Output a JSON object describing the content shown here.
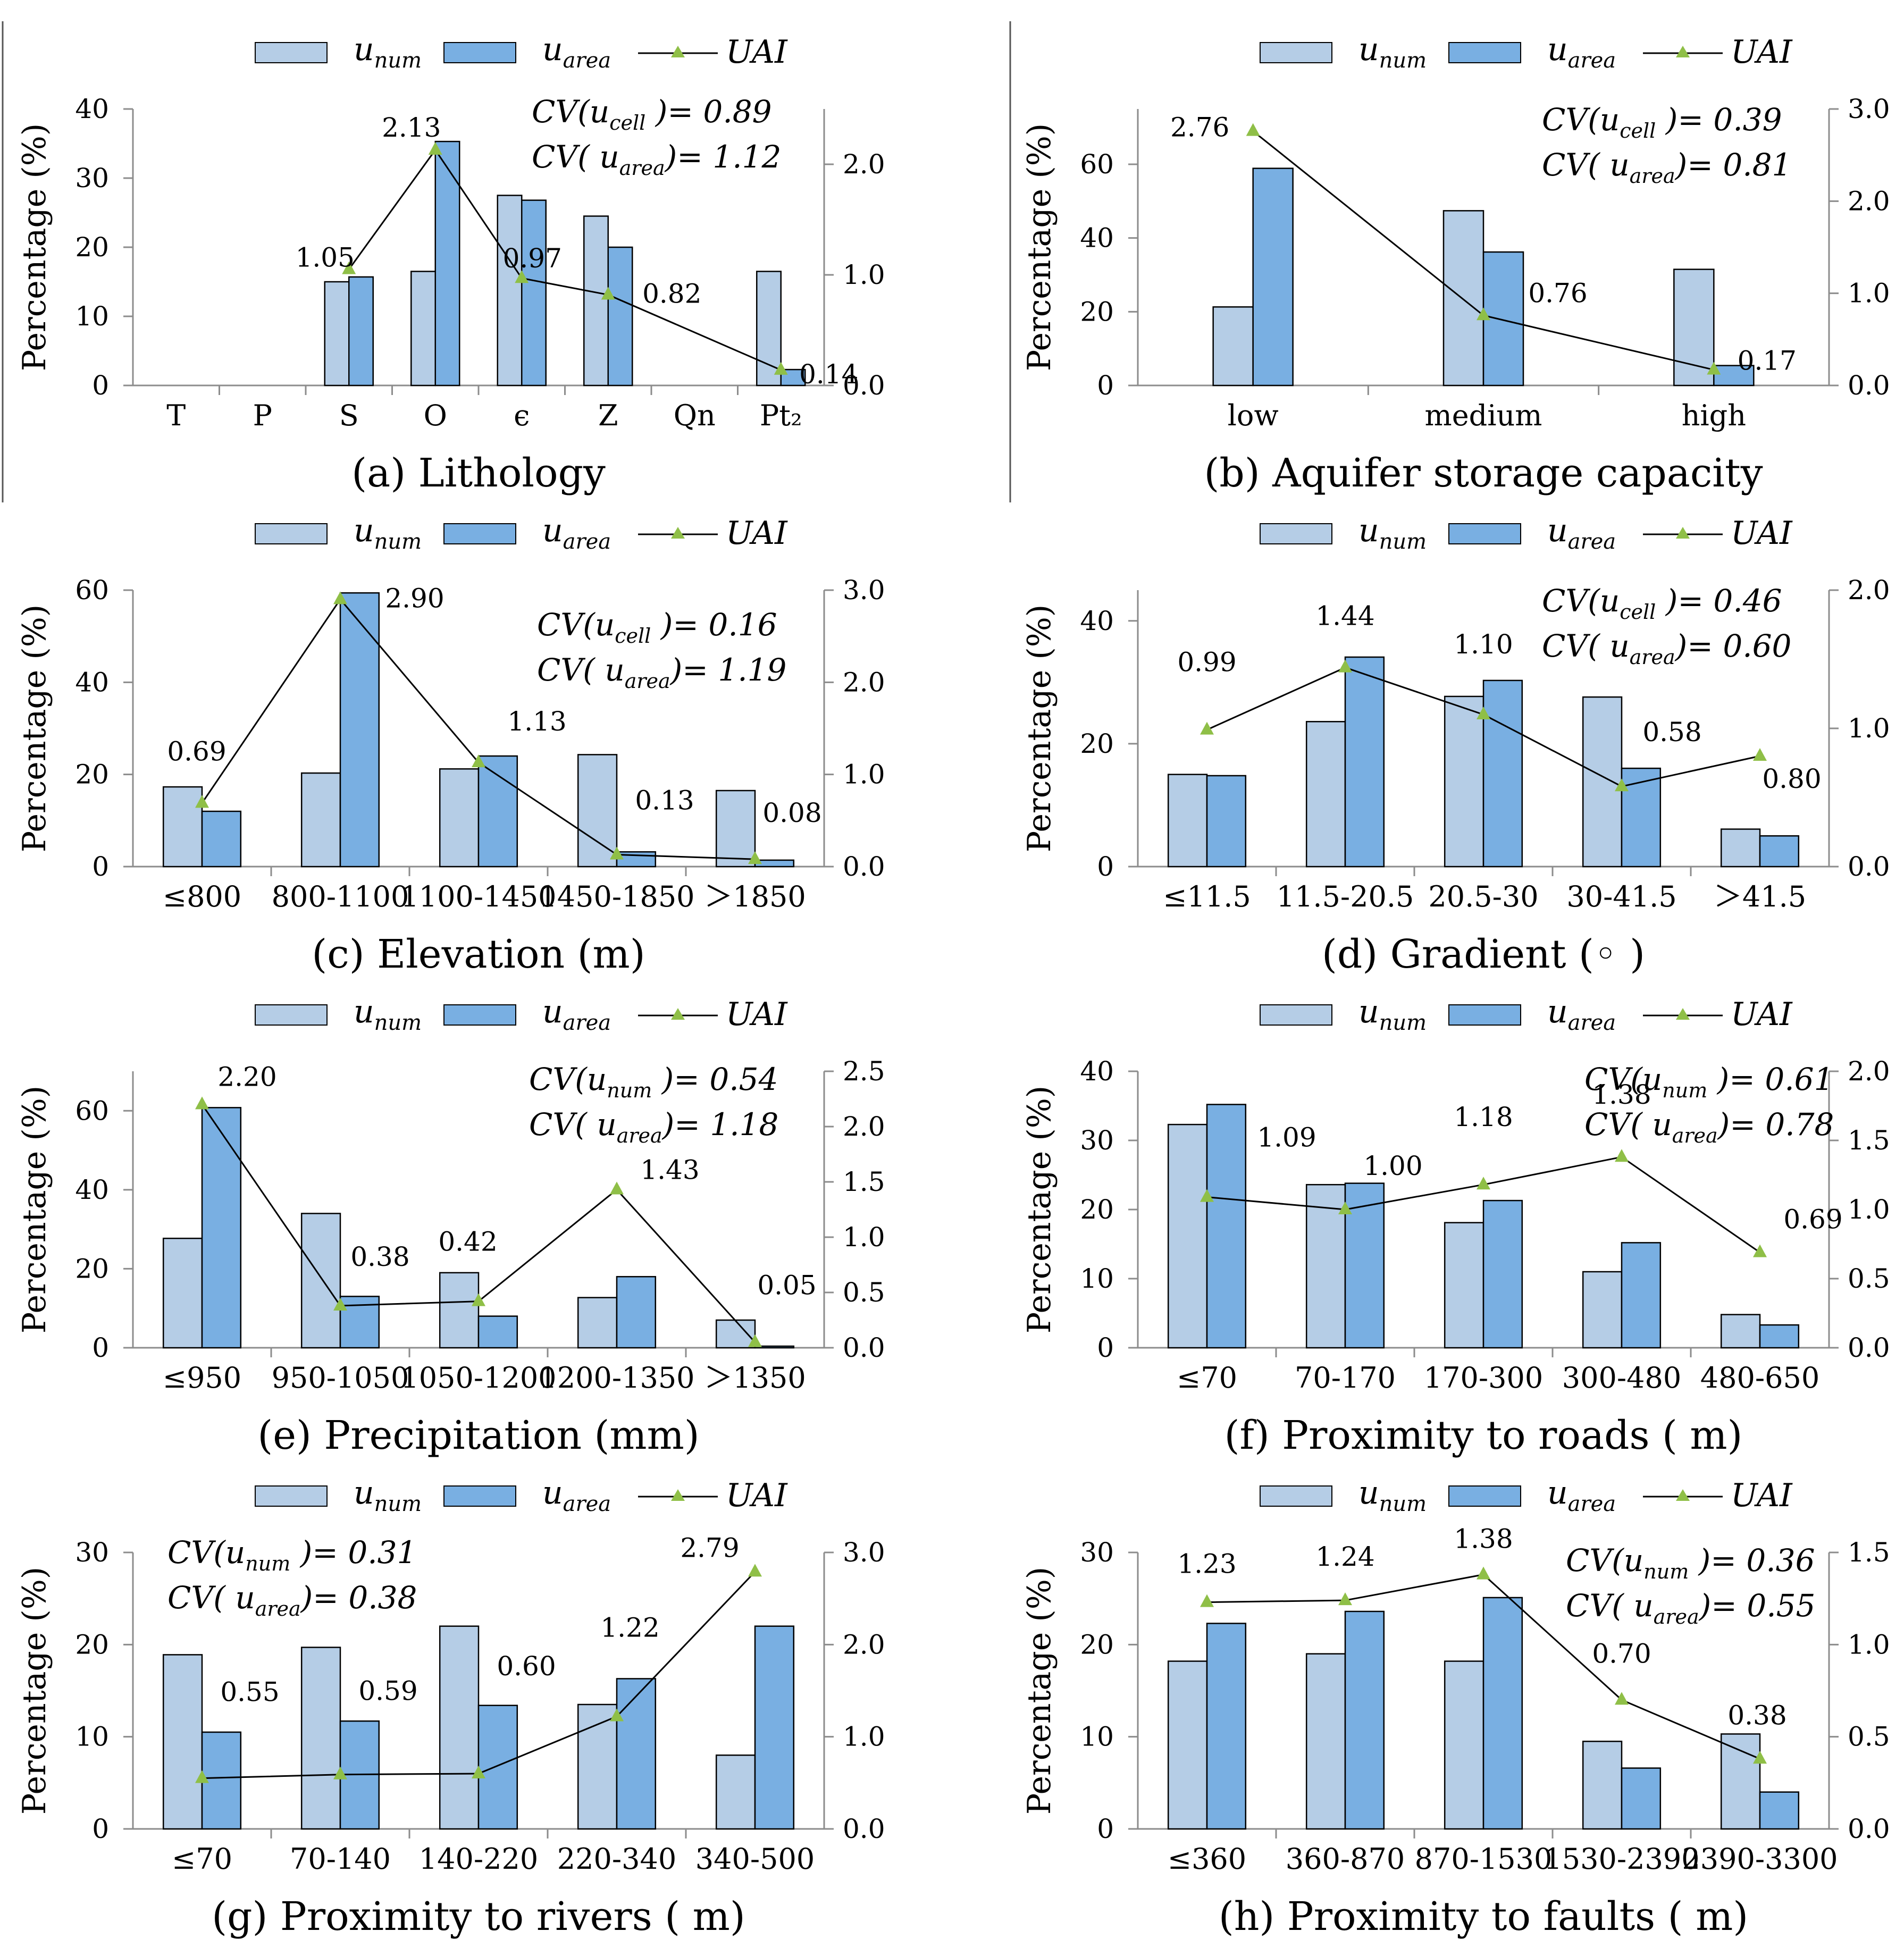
{
  "colors": {
    "u_num": "#b5cde6",
    "u_area": "#79afe2",
    "uai_line": "#000000",
    "uai_marker": "#8fbf47",
    "axis": "#8c8c8c"
  },
  "legend": {
    "u_num_label": "u",
    "u_num_sub": "num",
    "u_area_label": "u",
    "u_area_sub": "area",
    "uai_label": "UAI"
  },
  "y_axis_label": "Percentage (%)",
  "chart_data": [
    {
      "id": "a",
      "type": "bar",
      "title": "(a) Lithology",
      "categories": [
        "T",
        "P",
        "S",
        "O",
        "ϵ",
        "Z",
        "Qn",
        "Pt₂"
      ],
      "series": [
        {
          "name": "u_num",
          "values": [
            0,
            0,
            15,
            16.5,
            27.5,
            24.5,
            0,
            16.5
          ]
        },
        {
          "name": "u_area",
          "values": [
            0,
            0,
            15.7,
            35.3,
            26.8,
            20,
            0,
            2.3
          ]
        },
        {
          "name": "UAI",
          "values": [
            null,
            null,
            1.05,
            2.13,
            0.97,
            0.82,
            null,
            0.14
          ],
          "labels": [
            "",
            "",
            "1.05",
            "2.13",
            "0.97",
            "0.82",
            "",
            "0.14"
          ]
        }
      ],
      "ylim": [
        0,
        40
      ],
      "yticks": [
        "0",
        "10",
        "20",
        "30",
        "40"
      ],
      "y2lim": [
        0,
        2.5
      ],
      "y2ticks": [
        "0.0",
        "1.0",
        "2.0"
      ],
      "y2tick_values": [
        0,
        1,
        2
      ],
      "cv1": {
        "pre": "CV(u",
        "sub": "cell",
        "post": " )= 0.89"
      },
      "cv2": {
        "pre": "CV( u",
        "sub": "area",
        "post": ")= 1.12"
      }
    },
    {
      "id": "b",
      "type": "bar",
      "title": "(b) Aquifer storage capacity",
      "categories": [
        "low",
        "medium",
        "high"
      ],
      "series": [
        {
          "name": "u_num",
          "values": [
            21.3,
            47.4,
            31.5
          ]
        },
        {
          "name": "u_area",
          "values": [
            58.9,
            36.2,
            5.4
          ]
        },
        {
          "name": "UAI",
          "values": [
            2.76,
            0.76,
            0.17
          ],
          "labels": [
            "2.76",
            "0.76",
            "0.17"
          ]
        }
      ],
      "ylim": [
        0,
        75
      ],
      "yticks": [
        "0",
        "20",
        "40",
        "60"
      ],
      "ytick_values": [
        0,
        20,
        40,
        60
      ],
      "y2lim": [
        0,
        3.0
      ],
      "y2ticks": [
        "0.0",
        "1.0",
        "2.0",
        "3.0"
      ],
      "y2tick_values": [
        0,
        1,
        2,
        3
      ],
      "cv1": {
        "pre": "CV(u",
        "sub": "cell",
        "post": " )= 0.39"
      },
      "cv2": {
        "pre": "CV( u",
        "sub": "area",
        "post": ")= 0.81"
      }
    },
    {
      "id": "c",
      "type": "bar",
      "title": "(c) Elevation (m)",
      "categories": [
        "≤800",
        "800-1100",
        "1100-1450",
        "1450-1850",
        "＞1850"
      ],
      "series": [
        {
          "name": "u_num",
          "values": [
            17.3,
            20.3,
            21.2,
            24.3,
            16.5
          ]
        },
        {
          "name": "u_area",
          "values": [
            12,
            59.4,
            24,
            3.2,
            1.4
          ]
        },
        {
          "name": "UAI",
          "values": [
            0.69,
            2.9,
            1.13,
            0.13,
            0.08
          ],
          "labels": [
            "0.69",
            "2.90",
            "1.13",
            "0.13",
            "0.08"
          ]
        }
      ],
      "ylim": [
        0,
        60
      ],
      "yticks": [
        "0",
        "20",
        "40",
        "60"
      ],
      "ytick_values": [
        0,
        20,
        40,
        60
      ],
      "y2lim": [
        0,
        3.0
      ],
      "y2ticks": [
        "0.0",
        "1.0",
        "2.0",
        "3.0"
      ],
      "y2tick_values": [
        0,
        1,
        2,
        3
      ],
      "cv1": {
        "pre": "CV(u",
        "sub": "cell",
        "post": " )= 0.16"
      },
      "cv2": {
        "pre": "CV( u",
        "sub": "area",
        "post": ")= 1.19"
      }
    },
    {
      "id": "d",
      "type": "bar",
      "title": "(d) Gradient (◦ )",
      "categories": [
        "≤11.5",
        "11.5-20.5",
        "20.5-30",
        "30-41.5",
        "＞41.5"
      ],
      "series": [
        {
          "name": "u_num",
          "values": [
            15,
            23.6,
            27.7,
            27.6,
            6.1
          ]
        },
        {
          "name": "u_area",
          "values": [
            14.8,
            34.1,
            30.3,
            16,
            5
          ]
        },
        {
          "name": "UAI",
          "values": [
            0.99,
            1.44,
            1.1,
            0.58,
            0.8
          ],
          "labels": [
            "0.99",
            "1.44",
            "1.10",
            "0.58",
            "0.80"
          ]
        }
      ],
      "ylim": [
        0,
        45
      ],
      "yticks": [
        "0",
        "20",
        "40"
      ],
      "ytick_values": [
        0,
        20,
        40
      ],
      "y2lim": [
        0,
        2.0
      ],
      "y2ticks": [
        "0.0",
        "1.0",
        "2.0"
      ],
      "y2tick_values": [
        0,
        1,
        2
      ],
      "cv1": {
        "pre": "CV(u",
        "sub": "cell",
        "post": " )= 0.46"
      },
      "cv2": {
        "pre": "CV( u",
        "sub": "area",
        "post": ")= 0.60"
      }
    },
    {
      "id": "e",
      "type": "bar",
      "title": "(e) Precipitation (mm)",
      "categories": [
        "≤950",
        "950-1050",
        "1050-1200",
        "1200-1350",
        "＞1350"
      ],
      "series": [
        {
          "name": "u_num",
          "values": [
            27.7,
            34,
            19,
            12.7,
            7
          ]
        },
        {
          "name": "u_area",
          "values": [
            60.8,
            13,
            8,
            18,
            0.4
          ]
        },
        {
          "name": "UAI",
          "values": [
            2.2,
            0.38,
            0.42,
            1.43,
            0.05
          ],
          "labels": [
            "2.20",
            "0.38",
            "0.42",
            "1.43",
            "0.05"
          ]
        }
      ],
      "ylim": [
        0,
        70
      ],
      "yticks": [
        "0",
        "20",
        "40",
        "60"
      ],
      "ytick_values": [
        0,
        20,
        40,
        60
      ],
      "y2lim": [
        0,
        2.5
      ],
      "y2ticks": [
        "0.0",
        "0.5",
        "1.0",
        "1.5",
        "2.0",
        "2.5"
      ],
      "y2tick_values": [
        0,
        0.5,
        1,
        1.5,
        2,
        2.5
      ],
      "cv1": {
        "pre": "CV(u",
        "sub": "num",
        "post": " )= 0.54"
      },
      "cv2": {
        "pre": "CV( u",
        "sub": "area",
        "post": ")= 1.18"
      }
    },
    {
      "id": "f",
      "type": "bar",
      "title": "(f) Proximity to roads ( m)",
      "categories": [
        "≤70",
        "70-170",
        "170-300",
        "300-480",
        "480-650"
      ],
      "series": [
        {
          "name": "u_num",
          "values": [
            32.3,
            23.6,
            18.1,
            11,
            4.8
          ]
        },
        {
          "name": "u_area",
          "values": [
            35.2,
            23.8,
            21.3,
            15.2,
            3.3
          ]
        },
        {
          "name": "UAI",
          "values": [
            1.09,
            1.0,
            1.18,
            1.38,
            0.69
          ],
          "labels": [
            "1.09",
            "1.00",
            "1.18",
            "1.38",
            "0.69"
          ]
        }
      ],
      "ylim": [
        0,
        40
      ],
      "yticks": [
        "0",
        "10",
        "20",
        "30",
        "40"
      ],
      "ytick_values": [
        0,
        10,
        20,
        30,
        40
      ],
      "y2lim": [
        0,
        2.0
      ],
      "y2ticks": [
        "0.0",
        "0.5",
        "1.0",
        "1.5",
        "2.0"
      ],
      "y2tick_values": [
        0,
        0.5,
        1,
        1.5,
        2
      ],
      "cv1": {
        "pre": "CV(u",
        "sub": "num",
        "post": " )= 0.61"
      },
      "cv2": {
        "pre": "CV( u",
        "sub": "area",
        "post": ")= 0.78"
      }
    },
    {
      "id": "g",
      "type": "bar",
      "title": "(g) Proximity to rivers ( m)",
      "categories": [
        "≤70",
        "70-140",
        "140-220",
        "220-340",
        "340-500"
      ],
      "series": [
        {
          "name": "u_num",
          "values": [
            18.9,
            19.7,
            22,
            13.5,
            8
          ]
        },
        {
          "name": "u_area",
          "values": [
            10.5,
            11.7,
            13.4,
            16.3,
            22
          ]
        },
        {
          "name": "UAI",
          "values": [
            0.55,
            0.59,
            0.6,
            1.22,
            2.79
          ],
          "labels": [
            "0.55",
            "0.59",
            "0.60",
            "1.22",
            "2.79"
          ]
        }
      ],
      "ylim": [
        0,
        30
      ],
      "yticks": [
        "0",
        "10",
        "20",
        "30"
      ],
      "ytick_values": [
        0,
        10,
        20,
        30
      ],
      "y2lim": [
        0,
        3.0
      ],
      "y2ticks": [
        "0.0",
        "1.0",
        "2.0",
        "3.0"
      ],
      "y2tick_values": [
        0,
        1,
        2,
        3
      ],
      "cv1": {
        "pre": "CV(u",
        "sub": "num",
        "post": " )= 0.31"
      },
      "cv2": {
        "pre": "CV( u",
        "sub": "area",
        "post": ")= 0.38"
      }
    },
    {
      "id": "h",
      "type": "bar",
      "title": "(h) Proximity to faults ( m)",
      "categories": [
        "≤360",
        "360-870",
        "870-1530",
        "1530-2390",
        "2390-3300"
      ],
      "series": [
        {
          "name": "u_num",
          "values": [
            18.2,
            19,
            18.2,
            9.5,
            10.3
          ]
        },
        {
          "name": "u_area",
          "values": [
            22.3,
            23.6,
            25.1,
            6.6,
            4
          ]
        },
        {
          "name": "UAI",
          "values": [
            1.23,
            1.24,
            1.38,
            0.7,
            0.38
          ],
          "labels": [
            "1.23",
            "1.24",
            "1.38",
            "0.70",
            "0.38"
          ]
        }
      ],
      "ylim": [
        0,
        30
      ],
      "yticks": [
        "0",
        "10",
        "20",
        "30"
      ],
      "ytick_values": [
        0,
        10,
        20,
        30
      ],
      "y2lim": [
        0,
        1.5
      ],
      "y2ticks": [
        "0.0",
        "0.5",
        "1.0",
        "1.5"
      ],
      "y2tick_values": [
        0,
        0.5,
        1,
        1.5
      ],
      "cv1": {
        "pre": "CV(u",
        "sub": "num",
        "post": " )= 0.36"
      },
      "cv2": {
        "pre": "CV( u",
        "sub": "area",
        "post": ")= 0.55"
      }
    }
  ]
}
